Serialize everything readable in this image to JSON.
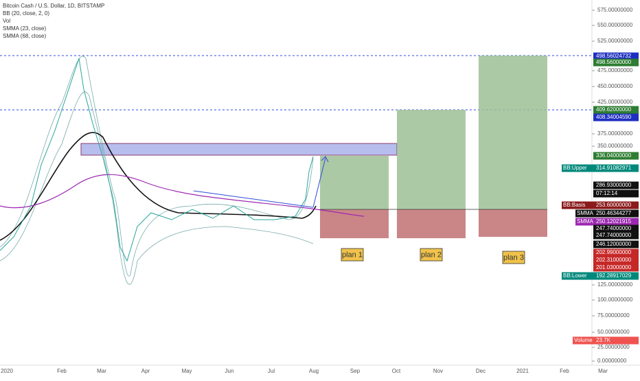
{
  "legend": [
    "Bitcoin Cash / U.S. Dollar, 1D, BITSTAMP",
    "BB (20, close, 2, 0)",
    "Vol",
    "SMMA (23, close)",
    "SMMA (68, close)"
  ],
  "price_axis": [
    "575.00000000",
    "550.00000000",
    "525.00000000",
    "475.00000000",
    "450.00000000",
    "425.00000000",
    "375.00000000",
    "350.00000000",
    "125.00000000",
    "100.00000000",
    "75.00000000",
    "50.00000000",
    "25.00000000",
    "0.00000000"
  ],
  "price_tags": [
    {
      "label": "",
      "text": "498.56024732"
    },
    {
      "label": "",
      "text": "498.56000000"
    },
    {
      "label": "",
      "text": "409.62000000"
    },
    {
      "label": "",
      "text": "408.34004590"
    },
    {
      "label": "",
      "text": "336.04000000"
    },
    {
      "label": "BB:Upper",
      "text": "314.91082971"
    },
    {
      "label": "",
      "text": "286.93000000"
    },
    {
      "label": "",
      "text": "07:12:14"
    },
    {
      "label": "BB:Basis",
      "text": "253.60000000"
    },
    {
      "label": "SMMA",
      "text": "250.46344277"
    },
    {
      "label": "SMMA",
      "text": "250.12021915"
    },
    {
      "label": "",
      "text": "247.74000000"
    },
    {
      "label": "",
      "text": "247.74000000"
    },
    {
      "label": "",
      "text": "246.12000000"
    },
    {
      "label": "",
      "text": "202.99000000"
    },
    {
      "label": "",
      "text": "202.31000000"
    },
    {
      "label": "",
      "text": "201.03000000"
    },
    {
      "label": "BB:Lower",
      "text": "192.28917029"
    },
    {
      "label": "Volume",
      "text": "23.7K"
    }
  ],
  "time_axis": [
    "2020",
    "Feb",
    "Mar",
    "Apr",
    "May",
    "Jun",
    "Jul",
    "Aug",
    "Sep",
    "Oct",
    "Nov",
    "Dec",
    "2021",
    "Feb",
    "Mar"
  ],
  "plans": [
    "plan 1",
    "plan 2",
    "plan 3"
  ]
}
